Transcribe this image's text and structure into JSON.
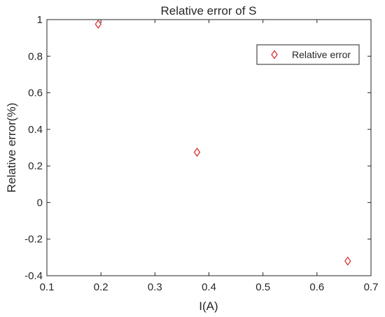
{
  "chart_data": {
    "type": "scatter",
    "title": "Relative error of S",
    "xlabel": "I(A)",
    "ylabel": "Relative error(%)",
    "xlim": [
      0.1,
      0.7
    ],
    "ylim": [
      -0.4,
      1.0
    ],
    "xticks": [
      0.1,
      0.2,
      0.3,
      0.4,
      0.5,
      0.6,
      0.7
    ],
    "xtick_labels": [
      "0.1",
      "0.2",
      "0.3",
      "0.4",
      "0.5",
      "0.6",
      "0.7"
    ],
    "yticks": [
      -0.4,
      -0.2,
      0,
      0.2,
      0.4,
      0.6,
      0.8,
      1.0
    ],
    "ytick_labels": [
      "-0.4",
      "-0.2",
      "0",
      "0.2",
      "0.4",
      "0.6",
      "0.8",
      "1"
    ],
    "grid": false,
    "legend_position": "top-right",
    "series": [
      {
        "name": "Relative error",
        "marker": "diamond",
        "color": "#d62728",
        "points": [
          {
            "x": 0.195,
            "y": 0.975
          },
          {
            "x": 0.378,
            "y": 0.275
          },
          {
            "x": 0.657,
            "y": -0.32
          }
        ]
      }
    ]
  }
}
